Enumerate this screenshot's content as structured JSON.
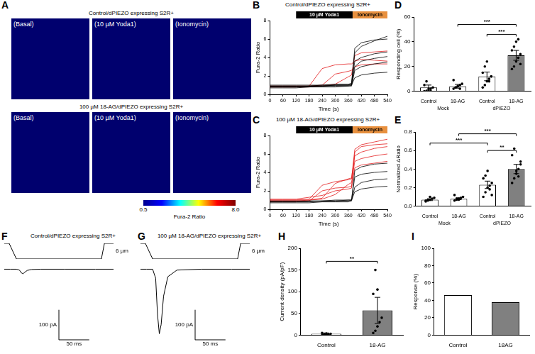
{
  "image_panel": {
    "panel": "A",
    "rows": [
      {
        "title": "Control/dPIEZO expressing S2R+",
        "labels": [
          "(Basal)",
          "(10 µM Yoda1)",
          "(Ionomycin)"
        ]
      },
      {
        "title": "100 µM 18-AG/dPIEZO expressing S2R+",
        "labels": [
          "(Basal)",
          "(10 µM Yoda1)",
          "(Ionomycin)"
        ]
      }
    ],
    "colorbar": {
      "range": [
        0.5,
        8.0
      ],
      "ticks": [
        0.5,
        {
          "value": 8,
          "label": "8.0"
        }
      ],
      "label": "Fura-2 Ratio"
    }
  },
  "chart_data": [
    {
      "type": "line",
      "panel": "B",
      "title": "Control/dPIEZO expressing S2R+",
      "x": [
        0,
        60,
        120,
        180,
        240,
        300,
        360,
        375,
        390,
        420,
        480,
        540
      ],
      "series": [
        {
          "color": "#000000",
          "values": [
            0.8,
            0.8,
            0.8,
            0.9,
            0.9,
            1.0,
            1.0,
            1.1,
            4.5,
            5.2,
            5.8,
            6.3
          ]
        },
        {
          "color": "#000000",
          "values": [
            0.9,
            0.9,
            0.9,
            0.9,
            1.0,
            1.0,
            1.0,
            1.1,
            3.6,
            4.0,
            4.4,
            4.6
          ]
        },
        {
          "color": "#000000",
          "values": [
            0.7,
            0.7,
            0.7,
            0.8,
            0.8,
            0.8,
            0.9,
            0.9,
            2.6,
            3.0,
            3.3,
            3.5
          ]
        },
        {
          "color": "#000000",
          "values": [
            0.8,
            0.8,
            0.8,
            0.8,
            0.9,
            0.9,
            0.9,
            1.0,
            1.8,
            2.1,
            2.3,
            2.4
          ]
        },
        {
          "color": "#000000",
          "values": [
            1.0,
            1.0,
            1.0,
            1.0,
            1.0,
            1.1,
            1.1,
            1.2,
            5.0,
            5.6,
            5.9,
            6.0
          ]
        },
        {
          "color": "#000000",
          "values": [
            0.9,
            0.9,
            0.9,
            0.9,
            0.9,
            1.0,
            1.0,
            1.0,
            3.0,
            3.6,
            3.9,
            4.1
          ]
        },
        {
          "color": "#e31a1c",
          "values": [
            0.9,
            0.9,
            0.9,
            0.9,
            2.8,
            3.2,
            3.3,
            3.3,
            3.6,
            3.8,
            3.7,
            3.6
          ]
        },
        {
          "color": "#e31a1c",
          "values": [
            0.8,
            0.8,
            0.8,
            0.9,
            1.0,
            2.2,
            2.5,
            2.6,
            3.0,
            3.2,
            3.3,
            3.3
          ]
        },
        {
          "color": "#e31a1c",
          "values": [
            0.8,
            0.8,
            0.8,
            0.8,
            0.9,
            1.1,
            1.9,
            2.1,
            4.2,
            4.5,
            4.6,
            4.7
          ]
        }
      ],
      "annotations": [
        {
          "text": "10 µM Yoda1",
          "x0": 120,
          "x1": 380,
          "color": "#000000"
        },
        {
          "text": "Ionomycin",
          "x0": 380,
          "x1": 540,
          "color": "#e8903e"
        }
      ],
      "x_label": "Time (s)",
      "y_label": "Fura-2 Ratio",
      "xlim": [
        0,
        540
      ],
      "xticks": [
        0,
        60,
        120,
        180,
        240,
        300,
        360,
        420,
        480,
        540
      ],
      "ylim": [
        0,
        8
      ],
      "yticks": [
        0,
        2,
        4,
        6,
        8
      ]
    },
    {
      "type": "line",
      "panel": "C",
      "title": "100 µM 18-AG/dPIEZO expressing S2R+",
      "x": [
        0,
        60,
        120,
        180,
        240,
        300,
        360,
        375,
        390,
        420,
        480,
        540
      ],
      "series": [
        {
          "color": "#000000",
          "values": [
            0.8,
            0.8,
            0.8,
            0.8,
            0.9,
            0.9,
            1.0,
            1.0,
            3.5,
            3.8,
            4.0,
            4.1
          ]
        },
        {
          "color": "#000000",
          "values": [
            0.7,
            0.7,
            0.7,
            0.7,
            0.8,
            0.8,
            0.8,
            0.9,
            2.4,
            2.9,
            3.2,
            3.3
          ]
        },
        {
          "color": "#000000",
          "values": [
            0.9,
            0.9,
            0.9,
            0.9,
            0.9,
            1.0,
            1.0,
            1.0,
            4.2,
            4.6,
            4.9,
            5.0
          ]
        },
        {
          "color": "#000000",
          "values": [
            0.8,
            0.8,
            0.8,
            0.9,
            0.9,
            0.9,
            0.9,
            1.0,
            1.9,
            2.2,
            2.4,
            2.5
          ]
        },
        {
          "color": "#e31a1c",
          "values": [
            1.0,
            1.0,
            1.0,
            1.1,
            2.6,
            3.0,
            3.2,
            3.3,
            6.5,
            7.0,
            7.3,
            7.6
          ]
        },
        {
          "color": "#e31a1c",
          "values": [
            0.9,
            0.9,
            0.9,
            1.0,
            1.2,
            2.8,
            3.3,
            3.4,
            5.8,
            6.2,
            6.6,
            6.8
          ]
        },
        {
          "color": "#e31a1c",
          "values": [
            1.0,
            1.0,
            1.0,
            1.0,
            1.1,
            1.6,
            2.7,
            2.9,
            5.2,
            5.5,
            5.8,
            6.0
          ]
        },
        {
          "color": "#e31a1c",
          "values": [
            0.8,
            0.8,
            0.8,
            0.9,
            2.0,
            2.3,
            2.4,
            2.5,
            4.5,
            4.8,
            5.0,
            5.2
          ]
        },
        {
          "color": "#e31a1c",
          "values": [
            1.1,
            1.1,
            1.1,
            1.3,
            1.5,
            2.0,
            2.2,
            2.3,
            6.2,
            6.8,
            7.0,
            7.1
          ]
        }
      ],
      "annotations": [
        {
          "text": "10 µM Yoda1",
          "x0": 120,
          "x1": 380,
          "color": "#000000"
        },
        {
          "text": "Ionomycin",
          "x0": 380,
          "x1": 540,
          "color": "#e8903e"
        }
      ],
      "x_label": "Time (s)",
      "y_label": "Fura-2 Ratio",
      "xlim": [
        0,
        540
      ],
      "xticks": [
        0,
        60,
        120,
        180,
        240,
        300,
        360,
        420,
        480,
        540
      ],
      "ylim": [
        0,
        8
      ],
      "yticks": [
        0,
        2,
        4,
        6,
        8
      ]
    },
    {
      "type": "bar",
      "panel": "D",
      "categories": [
        "Control",
        "18-AG",
        "Control",
        "18-AG"
      ],
      "groups": [
        {
          "label": "Mock",
          "categories": [
            0,
            1
          ]
        },
        {
          "label": "dPIEZO",
          "categories": [
            2,
            3
          ]
        }
      ],
      "values": [
        3,
        4,
        12,
        29
      ],
      "errors": [
        2,
        1.5,
        3.5,
        4
      ],
      "points": [
        [
          0,
          0,
          0,
          2,
          3,
          5,
          8,
          2,
          0
        ],
        [
          2,
          3,
          4,
          5,
          6,
          9,
          3,
          4,
          2
        ],
        [
          3,
          5,
          8,
          10,
          12,
          15,
          20,
          24,
          8,
          12
        ],
        [
          18,
          20,
          24,
          27,
          30,
          33,
          36,
          40,
          42,
          22
        ]
      ],
      "colors": [
        "#ffffff",
        "#ffffff",
        "#ffffff",
        "#808080"
      ],
      "brackets": [
        {
          "from": 1,
          "to": 3,
          "y": 54,
          "label": "***"
        },
        {
          "from": 2,
          "to": 3,
          "y": 46,
          "label": "***"
        }
      ],
      "y_label": "Responding cell (%)",
      "ylim": [
        0,
        60
      ],
      "yticks": [
        0,
        20,
        40,
        60
      ]
    },
    {
      "type": "bar",
      "panel": "E",
      "categories": [
        "Control",
        "18-AG",
        "Control",
        "18-AG"
      ],
      "groups": [
        {
          "label": "Mock",
          "categories": [
            0,
            1
          ]
        },
        {
          "label": "dPIEZO",
          "categories": [
            2,
            3
          ]
        }
      ],
      "values": [
        0.07,
        0.08,
        0.23,
        0.4
      ],
      "errors": [
        0.01,
        0.01,
        0.04,
        0.05
      ],
      "points": [
        [
          0.05,
          0.06,
          0.07,
          0.08,
          0.09,
          0.06,
          0.07,
          0.1
        ],
        [
          0.06,
          0.07,
          0.08,
          0.09,
          0.1,
          0.12,
          0.08,
          0.07
        ],
        [
          0.1,
          0.15,
          0.2,
          0.22,
          0.25,
          0.3,
          0.33,
          0.38,
          0.18,
          0.12
        ],
        [
          0.25,
          0.3,
          0.35,
          0.4,
          0.45,
          0.55,
          0.62,
          0.38,
          0.32,
          0.48
        ]
      ],
      "colors": [
        "#ffffff",
        "#ffffff",
        "#ffffff",
        "#808080"
      ],
      "brackets": [
        {
          "from": 1,
          "to": 3,
          "y": 0.78,
          "label": "***"
        },
        {
          "from": 0,
          "to": 2,
          "y": 0.68,
          "label": "***"
        },
        {
          "from": 2,
          "to": 3,
          "y": 0.6,
          "label": "**"
        }
      ],
      "y_label": "Normalized ΔRatio",
      "ylim": [
        0,
        0.8
      ],
      "yticks": [
        {
          "value": 0,
          "label": "0.0"
        },
        0.2,
        0.4,
        0.6,
        0.8
      ]
    },
    {
      "type": "line",
      "panel": "F",
      "title": "Control/dPIEZO expressing S2R+",
      "x": [
        0,
        10,
        20,
        25,
        28,
        31,
        34,
        38,
        45,
        60,
        100,
        150,
        180
      ],
      "values": [
        0,
        0,
        0,
        -3,
        -12,
        -15,
        -10,
        -4,
        -1,
        0,
        0,
        0,
        0
      ],
      "color": "#000000",
      "xlim": [
        0,
        180
      ],
      "ylim": [
        -240,
        20
      ],
      "tick_labels": false,
      "scale_bar": {
        "x": 50,
        "x_label": "50 ms",
        "y": 100,
        "y_label": "100 pA"
      },
      "stimulus": {
        "x": [
          0,
          8,
          20,
          160,
          165,
          180
        ],
        "values": [
          0,
          0,
          6,
          6,
          0,
          0
        ],
        "ylim": [
          0,
          6
        ],
        "label": "6 µm"
      }
    },
    {
      "type": "line",
      "panel": "G",
      "title": "100 µM 18-AG/dPIEZO expressing S2R+",
      "x": [
        0,
        10,
        20,
        25,
        28,
        31,
        34,
        38,
        45,
        60,
        100,
        150,
        180
      ],
      "values": [
        0,
        0,
        0,
        -30,
        -150,
        -215,
        -185,
        -90,
        -25,
        -3,
        0,
        0,
        0
      ],
      "color": "#000000",
      "xlim": [
        0,
        180
      ],
      "ylim": [
        -240,
        20
      ],
      "tick_labels": false,
      "scale_bar": {
        "x": 50,
        "x_label": "50 ms",
        "y": 100,
        "y_label": "100 pA"
      },
      "stimulus": {
        "x": [
          0,
          8,
          20,
          160,
          165,
          180
        ],
        "values": [
          0,
          0,
          6,
          6,
          0,
          0
        ],
        "ylim": [
          0,
          6
        ],
        "label": "6 µm"
      }
    },
    {
      "type": "bar",
      "panel": "H",
      "categories": [
        "Control",
        "18-AG"
      ],
      "values": [
        3,
        57
      ],
      "errors": [
        2,
        30
      ],
      "points": [
        [
          0,
          1,
          1,
          2,
          3,
          5,
          2,
          4
        ],
        [
          5,
          10,
          20,
          30,
          40,
          95,
          150,
          105
        ]
      ],
      "colors": [
        "#ffffff",
        "#808080"
      ],
      "brackets": [
        {
          "from": 0,
          "to": 1,
          "y": 170,
          "label": "**"
        }
      ],
      "y_label": "Current density (pA/pF)",
      "ylim": [
        0,
        200
      ],
      "yticks": [
        0,
        50,
        100,
        150,
        200
      ]
    },
    {
      "type": "bar",
      "panel": "I",
      "categories": [
        "Control",
        "18AG"
      ],
      "values": [
        46,
        38
      ],
      "colors": [
        "#ffffff",
        "#808080"
      ],
      "y_label": "Response (%)",
      "ylim": [
        0,
        100
      ],
      "yticks": [
        0,
        20,
        40,
        60,
        80,
        100
      ]
    }
  ]
}
